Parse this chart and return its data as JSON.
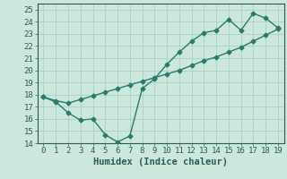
{
  "line1_x": [
    0,
    1,
    2,
    3,
    4,
    5,
    6,
    7,
    8,
    9,
    10,
    11,
    12,
    13,
    14,
    15,
    16,
    17,
    18,
    19
  ],
  "line1_y": [
    17.8,
    17.4,
    16.5,
    15.9,
    16.0,
    14.7,
    14.1,
    14.6,
    18.5,
    19.3,
    20.5,
    21.5,
    22.4,
    23.1,
    23.3,
    24.2,
    23.3,
    24.7,
    24.3,
    23.5
  ],
  "line2_x": [
    0,
    1,
    2,
    3,
    4,
    5,
    6,
    7,
    8,
    9,
    10,
    11,
    12,
    13,
    14,
    15,
    16,
    17,
    18,
    19
  ],
  "line2_y": [
    17.8,
    17.5,
    17.3,
    17.6,
    17.9,
    18.2,
    18.5,
    18.8,
    19.1,
    19.4,
    19.7,
    20.0,
    20.4,
    20.8,
    21.1,
    21.5,
    21.9,
    22.4,
    22.9,
    23.4
  ],
  "color": "#2a7a6e",
  "bg_color": "#cce8dc",
  "grid_color": "#aad0c0",
  "xlabel": "Humidex (Indice chaleur)",
  "xlim": [
    -0.5,
    19.5
  ],
  "ylim": [
    14,
    25.5
  ],
  "xticks": [
    0,
    1,
    2,
    3,
    4,
    5,
    6,
    7,
    8,
    9,
    10,
    11,
    12,
    13,
    14,
    15,
    16,
    17,
    18,
    19
  ],
  "yticks": [
    14,
    15,
    16,
    17,
    18,
    19,
    20,
    21,
    22,
    23,
    24,
    25
  ],
  "font_color": "#2a5a5a",
  "xlabel_fontsize": 7.5,
  "tick_fontsize": 6.5,
  "line_width": 1.0,
  "marker_size": 2.5,
  "marker": "D"
}
